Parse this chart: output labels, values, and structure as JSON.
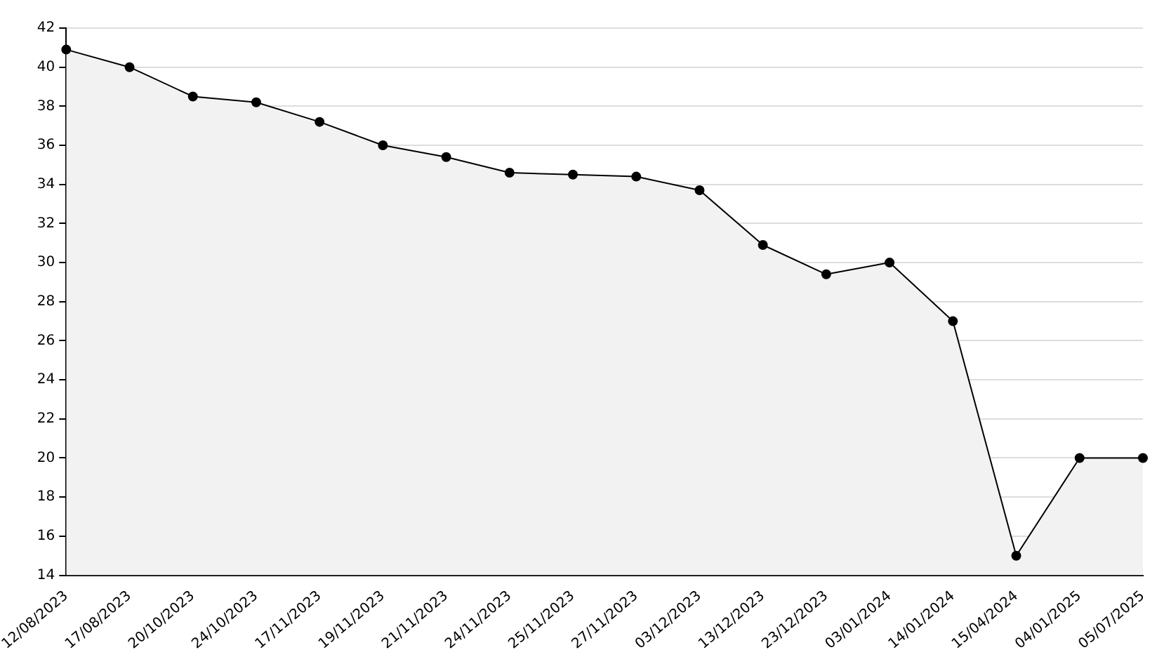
{
  "chart_data": {
    "type": "area",
    "categories": [
      "12/08/2023",
      "17/08/2023",
      "20/10/2023",
      "24/10/2023",
      "17/11/2023",
      "19/11/2023",
      "21/11/2023",
      "24/11/2023",
      "25/11/2023",
      "27/11/2023",
      "03/12/2023",
      "13/12/2023",
      "23/12/2023",
      "03/01/2024",
      "14/01/2024",
      "15/04/2024",
      "04/01/2025",
      "05/07/2025"
    ],
    "series": [
      {
        "color": "#000000",
        "values": [
          40.9,
          40.0,
          38.5,
          38.2,
          37.2,
          36.0,
          35.4,
          34.6,
          34.5,
          34.4,
          33.7,
          30.9,
          29.4,
          30.0,
          27.0,
          15.0,
          20.0,
          20.0
        ]
      }
    ],
    "ylim": [
      14,
      42
    ],
    "yticks": [
      14,
      16,
      18,
      20,
      22,
      24,
      26,
      28,
      30,
      32,
      34,
      36,
      38,
      40,
      42
    ],
    "grid": "y",
    "marker": "circle",
    "legend": false
  }
}
